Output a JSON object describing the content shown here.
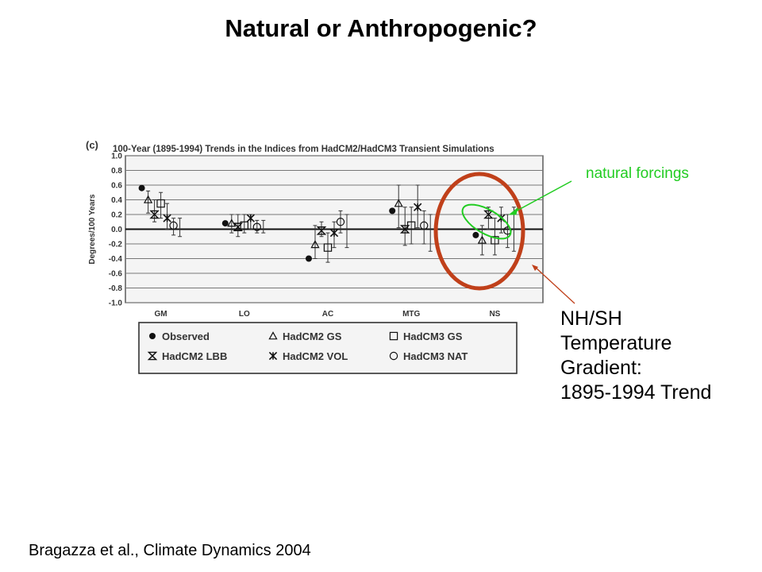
{
  "slide": {
    "title": "Natural or Anthropogenic?",
    "citation": "Bragazza et al., Climate Dynamics 2004",
    "annotation_natural": "natural forcings",
    "annotation_nhsh_lines": [
      "NH/SH",
      "Temperature",
      "Gradient:",
      "1895-1994 Trend"
    ],
    "colors": {
      "natural_forcings": "#22cc22",
      "ns_highlight": "#c0401a",
      "arrow_nhsh": "#c0401a"
    }
  },
  "chart_data": {
    "type": "scatter",
    "panel_label": "(c)",
    "title": "100-Year (1895-1994) Trends in the Indices from HadCM2/HadCM3 Transient Simulations",
    "ylabel": "Degrees/100 Years",
    "xlabel": "",
    "ylim": [
      -1.0,
      1.0
    ],
    "yticks": [
      "1.0",
      "0.8",
      "0.6",
      "0.4",
      "0.2",
      "0.0",
      "-0.2",
      "-0.4",
      "-0.6",
      "-0.8",
      "-1.0"
    ],
    "grid": true,
    "categories": [
      "GM",
      "LO",
      "AC",
      "MTG",
      "NS"
    ],
    "legend_position": "bottom",
    "series": [
      {
        "name": "Observed",
        "marker": "dot",
        "values": [
          0.56,
          0.08,
          -0.4,
          0.25,
          -0.08
        ],
        "err_low": [
          null,
          null,
          null,
          null,
          null
        ],
        "err_high": [
          null,
          null,
          null,
          null,
          null
        ]
      },
      {
        "name": "HadCM2 GS",
        "marker": "triangle",
        "values": [
          0.4,
          0.08,
          -0.21,
          0.35,
          -0.15
        ],
        "err_low": [
          0.22,
          -0.05,
          -0.4,
          0.02,
          -0.35
        ],
        "err_high": [
          0.52,
          0.2,
          0.05,
          0.6,
          0.05
        ]
      },
      {
        "name": "HadCM2 LBB",
        "marker": "hourglass",
        "values": [
          0.2,
          0.03,
          -0.02,
          0.0,
          0.2
        ],
        "err_low": [
          0.1,
          -0.1,
          -0.1,
          -0.22,
          0.0
        ],
        "err_high": [
          0.4,
          0.2,
          0.1,
          0.3,
          0.3
        ]
      },
      {
        "name": "HadCM3 GS",
        "marker": "square",
        "values": [
          0.35,
          0.05,
          -0.25,
          0.05,
          -0.15
        ],
        "err_low": [
          0.15,
          -0.05,
          -0.45,
          -0.2,
          -0.35
        ],
        "err_high": [
          0.5,
          0.2,
          -0.05,
          0.3,
          0.15
        ]
      },
      {
        "name": "HadCM2 VOL",
        "marker": "star",
        "values": [
          0.15,
          0.15,
          -0.05,
          0.3,
          0.15
        ],
        "err_low": [
          0.0,
          0.0,
          -0.25,
          0.02,
          -0.05
        ],
        "err_high": [
          0.35,
          0.2,
          0.1,
          0.6,
          0.3
        ]
      },
      {
        "name": "HadCM3 NAT",
        "marker": "circle",
        "values": [
          0.05,
          0.03,
          0.1,
          0.05,
          -0.02
        ],
        "err_low": [
          -0.08,
          -0.05,
          -0.05,
          -0.2,
          -0.25
        ],
        "err_high": [
          0.15,
          0.12,
          0.25,
          0.25,
          0.2
        ]
      },
      {
        "name": "",
        "marker": "none",
        "values": [
          0.0,
          0.0,
          -0.1,
          0.0,
          0.0
        ],
        "err_low": [
          -0.1,
          -0.05,
          -0.25,
          -0.3,
          -0.3
        ],
        "err_high": [
          0.15,
          0.12,
          0.2,
          0.2,
          0.3
        ]
      }
    ]
  }
}
